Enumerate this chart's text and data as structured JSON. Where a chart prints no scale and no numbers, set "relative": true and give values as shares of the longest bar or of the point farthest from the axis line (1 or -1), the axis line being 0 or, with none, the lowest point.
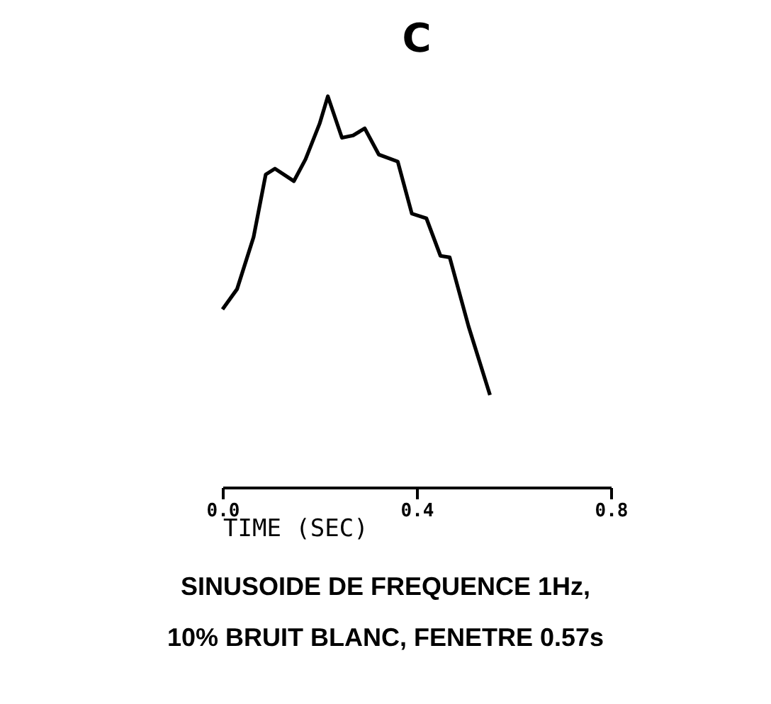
{
  "chart_data": {
    "type": "line",
    "title": "C",
    "xlabel": "TIME (SEC)",
    "relative": true,
    "grid": false,
    "legend": false,
    "marker": "none",
    "line_style": "solid",
    "xlim": [
      0,
      0.8
    ],
    "xticks": [
      {
        "value": 0,
        "label": "0.0"
      },
      0.4,
      0.8
    ],
    "x": [
      0,
      0.03,
      0.064,
      0.089,
      0.108,
      0.147,
      0.171,
      0.2,
      0.217,
      0.246,
      0.269,
      0.293,
      0.322,
      0.361,
      0.39,
      0.42,
      0.449,
      0.468,
      0.507,
      0.551
    ],
    "series": [
      {
        "color": "#000000",
        "values": [
          0.455,
          0.507,
          0.64,
          0.8,
          0.815,
          0.783,
          0.839,
          0.93,
          1,
          0.894,
          0.9,
          0.918,
          0.851,
          0.833,
          0.7,
          0.688,
          0.592,
          0.588,
          0.411,
          0.236
        ]
      }
    ],
    "annotations": [
      "SINUSOIDE DE FREQUENCE 1Hz,",
      "10% BRUIT BLANC, FENETRE 0.57s"
    ]
  }
}
